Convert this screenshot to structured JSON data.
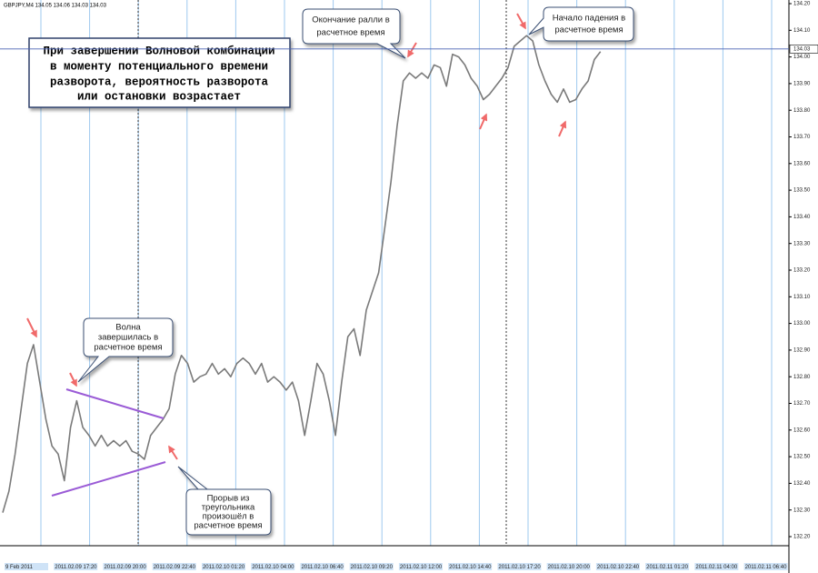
{
  "chart_data": {
    "type": "line",
    "header": "GBPJPY,M4  134.05 134.06 134.03 134.03",
    "categories": [
      "9 Feb 2011",
      null,
      null,
      null,
      null,
      null,
      null,
      null,
      "2011.02.09 17:20",
      null,
      null,
      null,
      null,
      null,
      null,
      null,
      "2011.02.09 20:00",
      null,
      null,
      null,
      null,
      null,
      null,
      null,
      "2011.02.09 22:40",
      null,
      null,
      null,
      null,
      null,
      null,
      null,
      "2011.02.10 01:20",
      null,
      null,
      null,
      null,
      null,
      null,
      null,
      "2011.02.10 04:00",
      null,
      null,
      null,
      null,
      null,
      null,
      null,
      "2011.02.10 06:40",
      null,
      null,
      null,
      null,
      null,
      null,
      null,
      "2011.02.10 09:20",
      null,
      null,
      null,
      null,
      null,
      null,
      null,
      "2011.02.10 12:00",
      null,
      null,
      null,
      null,
      null,
      null,
      null,
      "2011.02.10 14:40",
      null,
      null,
      null,
      null,
      null,
      null,
      null,
      "2011.02.10 17:20",
      null,
      null,
      null,
      null,
      null,
      null,
      null,
      "2011.02.10 20:00",
      null,
      null,
      null,
      null,
      null,
      null,
      null,
      "2011.02.10 22:40",
      null,
      null,
      null,
      null,
      null,
      null,
      null,
      "2011.02.11 01:20",
      null,
      null,
      null,
      null,
      null,
      null,
      null,
      "2011.02.11 04:00",
      null,
      null,
      null,
      null,
      null,
      null,
      null,
      "2011.02.11 06:40",
      null,
      null,
      null,
      null,
      null,
      null,
      null
    ],
    "values": [
      132.29,
      132.37,
      132.51,
      132.68,
      132.85,
      132.92,
      132.78,
      132.64,
      132.54,
      132.51,
      132.41,
      132.61,
      132.71,
      132.61,
      132.58,
      132.54,
      132.58,
      132.54,
      132.56,
      132.54,
      132.56,
      132.52,
      132.51,
      132.49,
      132.58,
      132.61,
      132.64,
      132.68,
      132.81,
      132.88,
      132.85,
      132.78,
      132.8,
      132.81,
      132.85,
      132.81,
      132.83,
      132.8,
      132.85,
      132.87,
      132.85,
      132.81,
      132.85,
      132.78,
      132.8,
      132.78,
      132.75,
      132.78,
      132.71,
      132.58,
      132.71,
      132.85,
      132.81,
      132.71,
      132.58,
      132.78,
      132.95,
      132.98,
      132.88,
      133.05,
      133.12,
      133.19,
      133.36,
      133.53,
      133.74,
      133.91,
      133.94,
      133.92,
      133.94,
      133.92,
      133.97,
      133.96,
      133.89,
      134.01,
      134.0,
      133.97,
      133.92,
      133.89,
      133.84,
      133.86,
      133.89,
      133.92,
      133.96,
      134.04,
      134.06,
      134.08,
      134.06,
      133.97,
      133.91,
      133.86,
      133.83,
      133.88,
      133.83,
      133.84,
      133.88,
      133.91,
      133.99,
      134.02,
      null,
      null,
      null,
      null,
      null,
      null,
      null,
      null,
      null,
      null,
      null,
      null,
      null,
      null,
      null,
      null,
      null,
      null,
      null,
      null,
      null,
      null,
      null,
      null,
      null,
      null,
      null,
      null,
      null,
      null
    ],
    "color": "#7a7a7a",
    "current_price": 134.03,
    "ylim": [
      132.17,
      134.22
    ],
    "yticks": [
      {
        "value": 132.2,
        "label": "132.20"
      },
      {
        "value": 132.3,
        "label": "132.30"
      },
      {
        "value": 132.4,
        "label": "132.40"
      },
      {
        "value": 132.5,
        "label": "132.50"
      },
      {
        "value": 132.6,
        "label": "132.60"
      },
      {
        "value": 132.7,
        "label": "132.70"
      },
      {
        "value": 132.8,
        "label": "132.80"
      },
      {
        "value": 132.9,
        "label": "132.90"
      },
      {
        "value": 133.0,
        "label": "133.00"
      },
      {
        "value": 133.1,
        "label": "133.10"
      },
      {
        "value": 133.2,
        "label": "133.20"
      },
      {
        "value": 133.3,
        "label": "133.30"
      },
      {
        "value": 133.4,
        "label": "133.40"
      },
      {
        "value": 133.5,
        "label": "133.50"
      },
      {
        "value": 133.6,
        "label": "133.60"
      },
      {
        "value": 133.7,
        "label": "133.70"
      },
      {
        "value": 133.8,
        "label": "133.80"
      },
      {
        "value": 133.9,
        "label": "133.90"
      },
      {
        "value": 134.0,
        "label": "134.00"
      },
      {
        "value": 134.1,
        "label": "134.10"
      },
      {
        "value": 134.2,
        "label": "134.20"
      }
    ],
    "annotations": [
      {
        "lines": [
          "При завершении Волновой комбинации",
          "в моменту потенциального времени",
          "разворота, вероятность разворота",
          "или остановки возрастает"
        ]
      },
      {
        "lines": [
          "Волна",
          "завершилась в",
          "расчетное время"
        ]
      },
      {
        "lines": [
          "Прорыв из",
          "треугольника",
          "произошёл в",
          "расчетное время"
        ]
      },
      {
        "lines": [
          "Окончание ралли в",
          "расчетное время"
        ]
      },
      {
        "lines": [
          "Начало падения в",
          "расчетное время"
        ]
      }
    ]
  }
}
